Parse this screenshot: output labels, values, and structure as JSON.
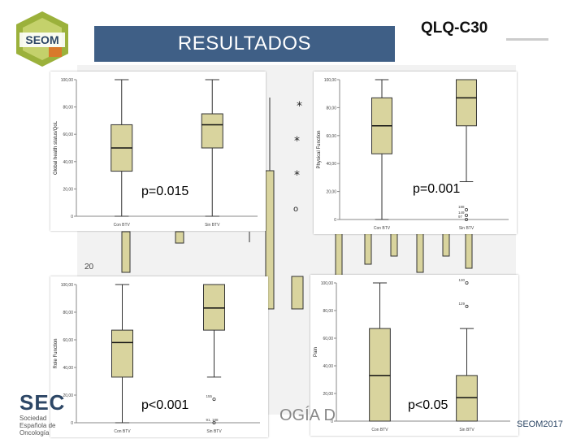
{
  "slide": {
    "banner_title": "RESULTADOS",
    "section_title": "QLQ-C30",
    "footer_org": "SEC",
    "footer_org_sub": "Sociedad Española de Oncología",
    "footer_partial_text": "OGÍA D",
    "hashtag": "SEOM2017",
    "side_number": "20",
    "accent_color": "#3f5f86",
    "box_fill_color": "#d9d49e"
  },
  "chart_data": [
    {
      "type": "boxplot",
      "ylabel": "Global health status/QoL",
      "categories": [
        "Con BTV",
        "Sin BTV"
      ],
      "y_ticks": [
        "0",
        "20,00",
        "40,00",
        "60,00",
        "80,00",
        "100,00"
      ],
      "ylim": [
        0,
        100
      ],
      "boxes": [
        {
          "category": "Con BTV",
          "min": 0,
          "q1": 33,
          "median": 50,
          "q3": 67,
          "max": 100
        },
        {
          "category": "Sin BTV",
          "min": 0,
          "q1": 50,
          "median": 67,
          "q3": 75,
          "max": 100
        }
      ],
      "outliers": [],
      "annotation": "p=0.015"
    },
    {
      "type": "boxplot",
      "ylabel": "Physical Function",
      "categories": [
        "Con BTV",
        "Sin BTV"
      ],
      "y_ticks": [
        "0",
        "20,00",
        "40,00",
        "60,00",
        "80,00",
        "100,00"
      ],
      "ylim": [
        0,
        100
      ],
      "boxes": [
        {
          "category": "Con BTV",
          "min": 0,
          "q1": 47,
          "median": 67,
          "q3": 87,
          "max": 100
        },
        {
          "category": "Sin BTV",
          "min": 27,
          "q1": 67,
          "median": 87,
          "q3": 100,
          "max": 100
        }
      ],
      "outliers": [
        {
          "category": "Sin BTV",
          "value": 7,
          "label": "188"
        },
        {
          "category": "Sin BTV",
          "value": 3,
          "label": "149"
        },
        {
          "category": "Sin BTV",
          "value": 0,
          "label": "97"
        }
      ],
      "annotation": "p=0.001"
    },
    {
      "type": "boxplot",
      "ylabel": "Role Function",
      "categories": [
        "Con BTV",
        "Sin BTV"
      ],
      "y_ticks": [
        "0",
        "20,00",
        "40,00",
        "60,00",
        "80,00",
        "100,00"
      ],
      "ylim": [
        0,
        100
      ],
      "boxes": [
        {
          "category": "Con BTV",
          "min": 0,
          "q1": 33,
          "median": 58,
          "q3": 67,
          "max": 100
        },
        {
          "category": "Sin BTV",
          "min": 33,
          "q1": 67,
          "median": 83,
          "q3": 100,
          "max": 100
        }
      ],
      "outliers": [
        {
          "category": "Sin BTV",
          "value": 17,
          "label": "155"
        },
        {
          "category": "Sin BTV",
          "value": 0,
          "label": "91, 188"
        }
      ],
      "annotation": "p<0.001"
    },
    {
      "type": "boxplot",
      "ylabel": "Pain",
      "categories": [
        "Con BTV",
        "Sin BTV"
      ],
      "y_ticks": [
        "0",
        "20,00",
        "40,00",
        "60,00",
        "80,00",
        "100,00"
      ],
      "ylim": [
        0,
        100
      ],
      "boxes": [
        {
          "category": "Con BTV",
          "min": 0,
          "q1": 0,
          "median": 33,
          "q3": 67,
          "max": 100
        },
        {
          "category": "Sin BTV",
          "min": 0,
          "q1": 0,
          "median": 17,
          "q3": 33,
          "max": 67
        }
      ],
      "outliers": [
        {
          "category": "Sin BTV",
          "value": 100,
          "label": "130"
        },
        {
          "category": "Sin BTV",
          "value": 83,
          "label": "129"
        }
      ],
      "annotation": "p<0.05"
    }
  ]
}
